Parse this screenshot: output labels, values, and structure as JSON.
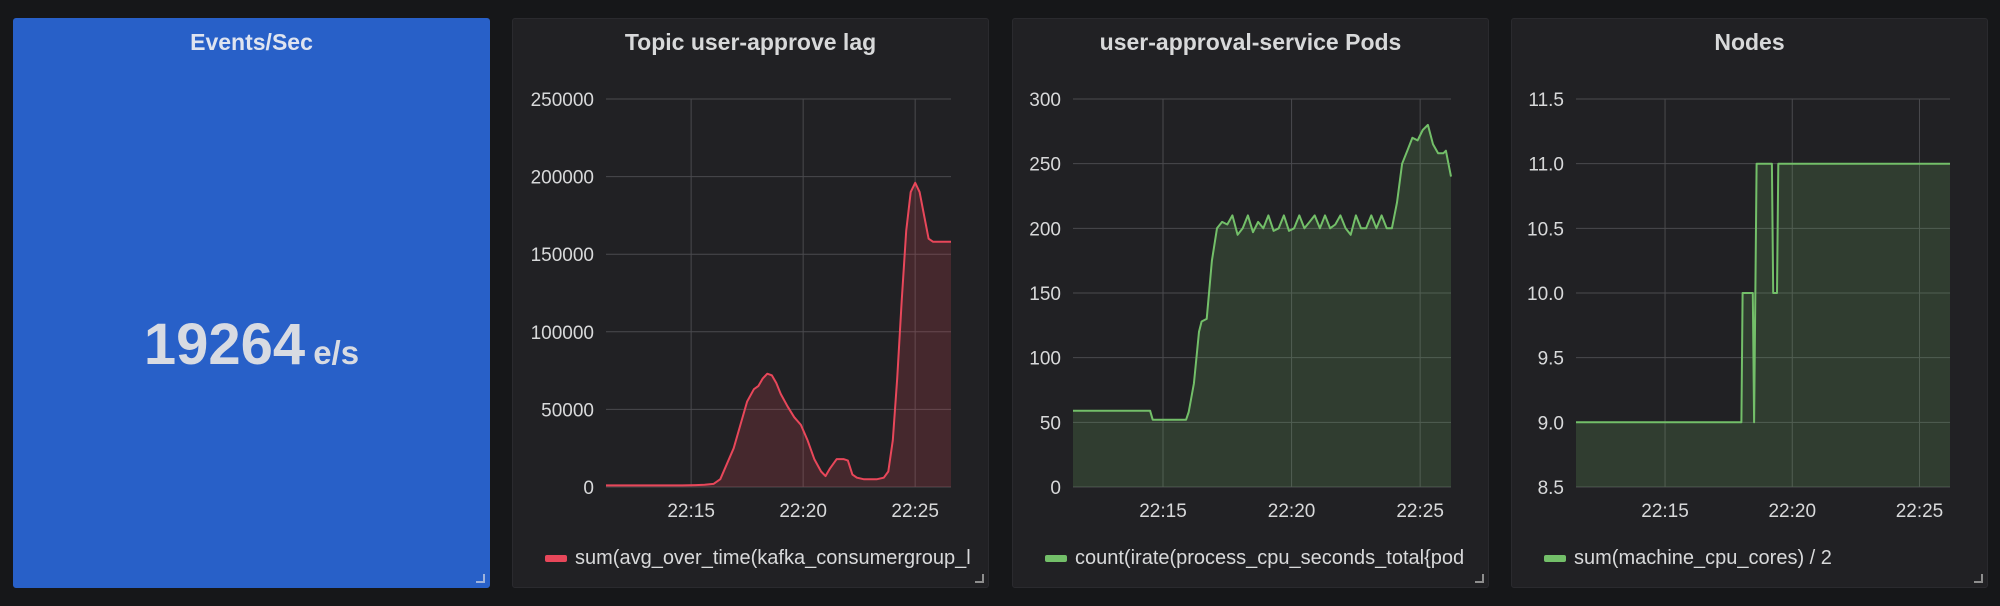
{
  "panels": {
    "stat": {
      "title": "Events/Sec",
      "value": "19264",
      "unit": "e/s",
      "background": "#2860c8"
    },
    "lag": {
      "title": "Topic user-approve lag",
      "legend": "sum(avg_over_time(kafka_consumergroup_l",
      "color": "#e8475a"
    },
    "pods": {
      "title": "user-approval-service Pods",
      "legend": "count(irate(process_cpu_seconds_total{pod",
      "color": "#73bf69"
    },
    "nodes": {
      "title": "Nodes",
      "legend": "sum(machine_cpu_cores) / 2",
      "color": "#73bf69"
    }
  },
  "chart_data": [
    {
      "type": "area",
      "id": "lag",
      "title": "Topic user-approve lag",
      "x_ticks": [
        "22:15",
        "22:20",
        "22:25"
      ],
      "x_tick_values": [
        15,
        20,
        25
      ],
      "xlim": [
        11.2,
        26.6
      ],
      "y_ticks": [
        "0",
        "50000",
        "100000",
        "150000",
        "200000",
        "250000"
      ],
      "ylim": [
        0,
        250000
      ],
      "grid": true,
      "series": [
        {
          "name": "sum(avg_over_time(kafka_consumergroup_l",
          "color": "#e8475a",
          "x": [
            11.2,
            12.0,
            13.0,
            14.0,
            14.6,
            15.2,
            15.6,
            16.0,
            16.3,
            16.6,
            16.9,
            17.2,
            17.5,
            17.8,
            18.0,
            18.2,
            18.4,
            18.6,
            18.8,
            19.0,
            19.3,
            19.6,
            19.9,
            20.2,
            20.5,
            20.8,
            21.0,
            21.2,
            21.5,
            21.8,
            22.0,
            22.2,
            22.4,
            22.7,
            23.0,
            23.3,
            23.6,
            23.8,
            24.0,
            24.2,
            24.4,
            24.6,
            24.8,
            25.0,
            25.2,
            25.4,
            25.6,
            25.8,
            26.0,
            26.2,
            26.4,
            26.6
          ],
          "y": [
            1000,
            1000,
            1000,
            1000,
            1000,
            1200,
            1500,
            2000,
            5000,
            15000,
            25000,
            40000,
            55000,
            63000,
            65000,
            70000,
            73000,
            72000,
            67000,
            60000,
            52000,
            45000,
            40000,
            30000,
            18000,
            10000,
            7000,
            12000,
            18000,
            18000,
            17000,
            8000,
            6000,
            5000,
            5000,
            5000,
            6000,
            10000,
            30000,
            70000,
            120000,
            165000,
            190000,
            196000,
            190000,
            175000,
            160000,
            158000,
            158000,
            158000,
            158000,
            158000
          ]
        }
      ]
    },
    {
      "type": "area",
      "id": "pods",
      "title": "user-approval-service Pods",
      "x_ticks": [
        "22:15",
        "22:20",
        "22:25"
      ],
      "x_tick_values": [
        15,
        20,
        25
      ],
      "xlim": [
        11.5,
        26.2
      ],
      "y_ticks": [
        "0",
        "50",
        "100",
        "150",
        "200",
        "250",
        "300"
      ],
      "ylim": [
        0,
        300
      ],
      "grid": true,
      "series": [
        {
          "name": "count(irate(process_cpu_seconds_total{pod",
          "color": "#73bf69",
          "x": [
            11.5,
            12.5,
            13.5,
            14.5,
            14.6,
            15.0,
            15.5,
            15.9,
            16.0,
            16.2,
            16.4,
            16.5,
            16.7,
            16.9,
            17.1,
            17.3,
            17.5,
            17.7,
            17.9,
            18.1,
            18.3,
            18.5,
            18.7,
            18.9,
            19.1,
            19.3,
            19.5,
            19.7,
            19.9,
            20.1,
            20.3,
            20.5,
            20.7,
            20.9,
            21.1,
            21.3,
            21.5,
            21.7,
            21.9,
            22.1,
            22.3,
            22.5,
            22.7,
            22.9,
            23.1,
            23.3,
            23.5,
            23.7,
            23.9,
            24.1,
            24.3,
            24.5,
            24.7,
            24.9,
            25.1,
            25.3,
            25.5,
            25.7,
            25.9,
            26.0,
            26.2
          ],
          "y": [
            59,
            59,
            59,
            59,
            52,
            52,
            52,
            52,
            58,
            80,
            120,
            128,
            130,
            175,
            200,
            205,
            203,
            210,
            195,
            200,
            210,
            197,
            205,
            200,
            210,
            198,
            200,
            210,
            198,
            200,
            210,
            200,
            205,
            210,
            200,
            210,
            200,
            203,
            210,
            200,
            195,
            210,
            200,
            200,
            210,
            200,
            210,
            200,
            200,
            220,
            250,
            260,
            270,
            268,
            276,
            280,
            265,
            258,
            258,
            260,
            240
          ]
        }
      ]
    },
    {
      "type": "area",
      "id": "nodes",
      "title": "Nodes",
      "x_ticks": [
        "22:15",
        "22:20",
        "22:25"
      ],
      "x_tick_values": [
        15,
        20,
        25
      ],
      "xlim": [
        11.5,
        26.2
      ],
      "y_ticks": [
        "8.5",
        "9.0",
        "9.5",
        "10.0",
        "10.5",
        "11.0",
        "11.5"
      ],
      "ylim": [
        8.5,
        11.5
      ],
      "grid": true,
      "series": [
        {
          "name": "sum(machine_cpu_cores) / 2",
          "color": "#73bf69",
          "x": [
            11.5,
            18.0,
            18.05,
            18.45,
            18.5,
            18.6,
            18.65,
            19.2,
            19.25,
            19.4,
            19.45,
            26.2
          ],
          "y": [
            9.0,
            9.0,
            10.0,
            10.0,
            9.0,
            11.0,
            11.0,
            11.0,
            10.0,
            10.0,
            11.0,
            11.0
          ]
        }
      ]
    }
  ]
}
